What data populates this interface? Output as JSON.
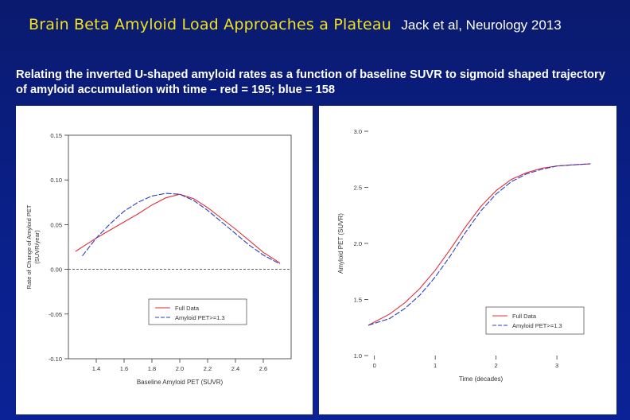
{
  "header": {
    "title": "Brain Beta Amyloid Load Approaches a Plateau",
    "reference": "Jack et al, Neurology 2013",
    "subtitle": "Relating the inverted U-shaped amyloid rates as a function of baseline SUVR to sigmoid shaped trajectory of amyloid accumulation with time – red = 195; blue = 158"
  },
  "colors": {
    "background": "#0a1f86",
    "title": "#f2e21a",
    "red_series": "#e0303a",
    "blue_series": "#2b3fc0"
  },
  "chart_data": [
    {
      "type": "line",
      "xlabel": "Baseline Amyloid PET (SUVR)",
      "ylabel": "Rate of Change of Amyloid PET (SUVR/year)",
      "xlim": [
        1.2,
        2.8
      ],
      "ylim": [
        -0.1,
        0.15
      ],
      "x_ticks": [
        "1.4",
        "1.6",
        "1.8",
        "2.0",
        "2.2",
        "2.4",
        "2.6"
      ],
      "y_ticks": [
        "0.15",
        "0.10",
        "0.05",
        "0.00",
        "-0.05",
        "-0.10"
      ],
      "reference_line": 0.0,
      "legend_position": "bottom-center",
      "grid": false,
      "series": [
        {
          "name": "Full Data",
          "color": "red",
          "x": [
            1.25,
            1.4,
            1.5,
            1.6,
            1.7,
            1.8,
            1.9,
            2.0,
            2.1,
            2.2,
            2.3,
            2.4,
            2.5,
            2.6,
            2.72
          ],
          "y": [
            0.02,
            0.035,
            0.044,
            0.053,
            0.062,
            0.072,
            0.08,
            0.084,
            0.079,
            0.069,
            0.057,
            0.045,
            0.032,
            0.019,
            0.007
          ]
        },
        {
          "name": "Amyloid PET>=1.3",
          "color": "blue",
          "x": [
            1.3,
            1.4,
            1.5,
            1.6,
            1.7,
            1.8,
            1.9,
            2.0,
            2.1,
            2.2,
            2.3,
            2.4,
            2.5,
            2.6,
            2.72
          ],
          "y": [
            0.015,
            0.035,
            0.051,
            0.065,
            0.075,
            0.082,
            0.085,
            0.084,
            0.077,
            0.066,
            0.053,
            0.04,
            0.027,
            0.016,
            0.006
          ]
        }
      ]
    },
    {
      "type": "line",
      "xlabel": "Time (decades)",
      "ylabel": "Amyloid PET (SUVR)",
      "xlim": [
        -0.1,
        3.6
      ],
      "ylim": [
        1.0,
        3.0
      ],
      "x_ticks": [
        "0",
        "1",
        "2",
        "3"
      ],
      "y_ticks": [
        "3.0",
        "2.5",
        "2.0",
        "1.5",
        "1.0"
      ],
      "legend_position": "bottom-right",
      "grid": false,
      "series": [
        {
          "name": "Full Data",
          "color": "red",
          "x": [
            -0.1,
            0.25,
            0.5,
            0.75,
            1.0,
            1.25,
            1.5,
            1.75,
            2.0,
            2.25,
            2.5,
            2.75,
            3.0,
            3.25,
            3.55
          ],
          "y": [
            1.27,
            1.37,
            1.47,
            1.6,
            1.76,
            1.95,
            2.15,
            2.33,
            2.47,
            2.57,
            2.63,
            2.67,
            2.69,
            2.7,
            2.71
          ]
        },
        {
          "name": "Amyloid PET>=1.3",
          "color": "blue",
          "x": [
            -0.1,
            0.25,
            0.5,
            0.75,
            1.0,
            1.25,
            1.5,
            1.75,
            2.0,
            2.25,
            2.5,
            2.75,
            3.0,
            3.25,
            3.55
          ],
          "y": [
            1.27,
            1.33,
            1.42,
            1.54,
            1.7,
            1.89,
            2.1,
            2.29,
            2.44,
            2.55,
            2.62,
            2.66,
            2.69,
            2.7,
            2.71
          ]
        }
      ]
    }
  ]
}
